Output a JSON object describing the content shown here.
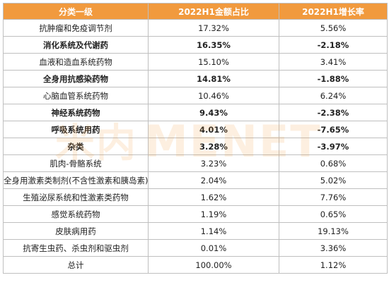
{
  "table": {
    "headers": [
      "分类一级",
      "2022H1金额占比",
      "2022H1增长率"
    ],
    "rows": [
      {
        "category": "抗肿瘤和免疫调节剂",
        "share": "17.32%",
        "growth": "5.56%",
        "bold": false
      },
      {
        "category": "消化系统及代谢药",
        "share": "16.35%",
        "growth": "-2.18%",
        "bold": true
      },
      {
        "category": "血液和造血系统药物",
        "share": "15.10%",
        "growth": "3.41%",
        "bold": false
      },
      {
        "category": "全身用抗感染药物",
        "share": "14.81%",
        "growth": "-1.88%",
        "bold": true
      },
      {
        "category": "心脑血管系统药物",
        "share": "10.46%",
        "growth": "6.24%",
        "bold": false
      },
      {
        "category": "神经系统药物",
        "share": "9.43%",
        "growth": "-2.38%",
        "bold": true
      },
      {
        "category": "呼吸系统用药",
        "share": "4.01%",
        "growth": "-7.65%",
        "bold": true
      },
      {
        "category": "杂类",
        "share": "3.28%",
        "growth": "-3.97%",
        "bold": true
      },
      {
        "category": "肌肉-骨骼系统",
        "share": "3.23%",
        "growth": "0.68%",
        "bold": false
      },
      {
        "category": "全身用激素类制剂(不含性激素和胰岛素)",
        "share": "2.04%",
        "growth": "5.02%",
        "bold": false
      },
      {
        "category": "生殖泌尿系统和性激素类药物",
        "share": "1.62%",
        "growth": "7.76%",
        "bold": false
      },
      {
        "category": "感觉系统药物",
        "share": "1.19%",
        "growth": "0.65%",
        "bold": false
      },
      {
        "category": "皮肤病用药",
        "share": "1.14%",
        "growth": "19.13%",
        "bold": false
      },
      {
        "category": "抗寄生虫药、杀虫剂和驱虫剂",
        "share": "0.01%",
        "growth": "3.36%",
        "bold": false
      },
      {
        "category": "总计",
        "share": "100.00%",
        "growth": "1.12%",
        "bold": false
      }
    ]
  },
  "watermark": {
    "cn": "米内",
    "en": "MENET"
  },
  "colors": {
    "header_bg": "#f19a3e",
    "header_text": "#ffffff",
    "border": "#bfbfbf"
  }
}
